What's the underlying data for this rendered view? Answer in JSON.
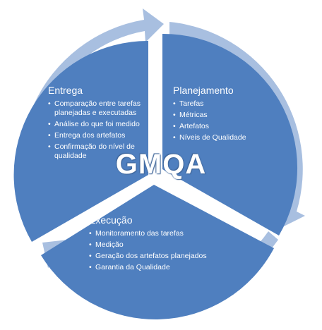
{
  "center": {
    "label": "GMQA"
  },
  "sections": {
    "entrega": {
      "title": "Entrega",
      "items": [
        "Comparação entre tarefas planejadas e executadas",
        "Análise do que foi medido",
        "Entrega dos artefatos",
        "Confirmação do nível de qualidade"
      ]
    },
    "planejamento": {
      "title": "Planejamento",
      "items": [
        "Tarefas",
        "Métricas",
        "Artefatos",
        "Níveis de Qualidade"
      ]
    },
    "execucao": {
      "title": "Execução",
      "items": [
        "Monitoramento das tarefas",
        "Medição",
        "Geração dos artefatos planejados",
        "Garantia da Qualidade"
      ]
    }
  },
  "colors": {
    "segment_fill": "#4f7fbf",
    "arrow_ring": "#a8bfe0",
    "text": "#ffffff"
  }
}
